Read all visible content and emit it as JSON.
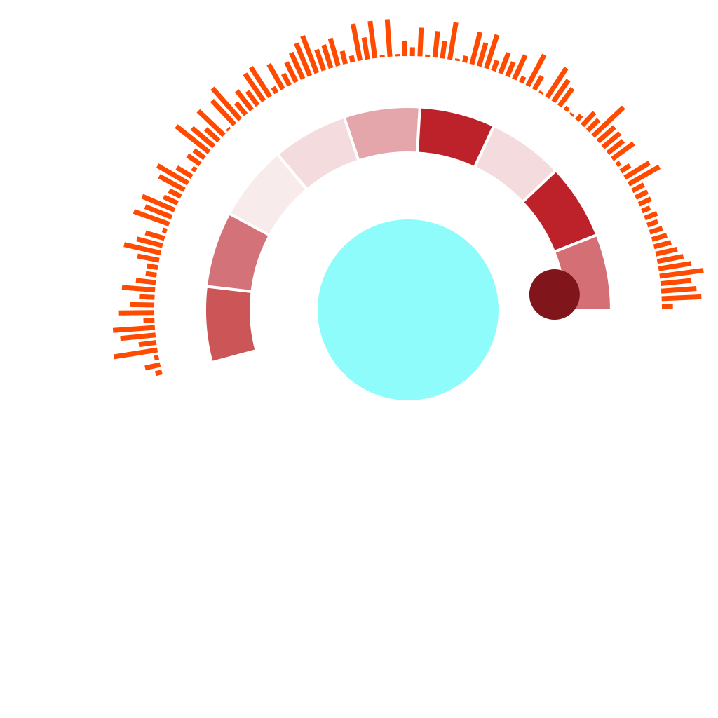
{
  "chart_data": {
    "type": "radial",
    "title": "",
    "colors": {
      "background": "#ffffff",
      "bars": "#ff4a00",
      "center_circle": "#8ffcfc",
      "marker": "#80151b",
      "segment_gap": "#ffffff"
    },
    "angle_range_deg": [
      255,
      450
    ],
    "segments": {
      "type": "heat-ring",
      "colors": [
        "#cb5557",
        "#d47279",
        "#f8ebeb",
        "#f4dcde",
        "#e4a6aa",
        "#bd212a",
        "#f4dcde",
        "#bd222b",
        "#d46f76"
      ]
    },
    "bars": {
      "type": "radial-bar",
      "values": [
        3,
        7,
        2,
        20,
        8,
        16,
        19,
        5,
        16,
        11,
        7,
        15,
        9,
        5,
        5,
        10,
        17,
        12,
        9,
        2,
        17,
        13,
        16,
        7,
        6,
        13,
        16,
        8,
        2,
        7,
        6,
        19,
        13,
        8,
        16,
        1,
        15,
        19,
        7,
        11,
        8,
        15,
        16,
        3,
        13,
        6,
        10,
        13,
        16,
        18,
        10,
        11,
        13,
        6,
        3,
        17,
        10,
        17,
        1,
        17,
        1,
        7,
        4,
        13,
        1,
        12,
        8,
        17,
        1,
        3,
        15,
        11,
        16,
        5,
        10,
        7,
        12,
        3,
        16,
        7,
        1,
        16,
        12,
        10,
        2,
        1,
        3,
        8,
        7,
        19,
        10,
        10,
        9,
        12,
        2,
        5,
        13,
        16,
        6,
        6,
        6,
        4,
        6,
        5,
        6,
        7,
        8,
        10,
        12,
        15,
        20,
        14,
        16,
        18,
        5
      ],
      "max_value": 20
    },
    "marker": {
      "label": "",
      "angle_deg": 84
    }
  }
}
